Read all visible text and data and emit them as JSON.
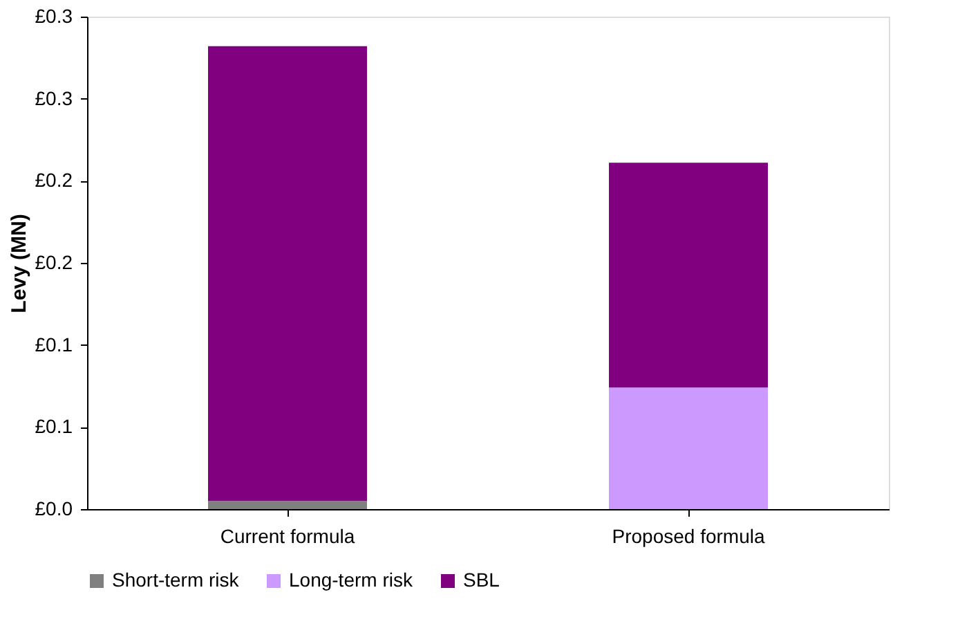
{
  "chart_data": {
    "type": "bar",
    "stacked": true,
    "ylabel": "Levy (MN)",
    "categories": [
      "Current formula",
      "Proposed formula"
    ],
    "series": [
      {
        "name": "Short-term risk",
        "color": "#808080",
        "values": [
          0.005,
          0
        ]
      },
      {
        "name": "Long-term risk",
        "color": "#cc99ff",
        "values": [
          0,
          0.074
        ]
      },
      {
        "name": "SBL",
        "color": "#800080",
        "values": [
          0.277,
          0.137
        ]
      }
    ],
    "ylim": [
      0,
      0.3
    ],
    "yticks": [
      {
        "value": 0,
        "label": "£0.0"
      },
      {
        "value": 0.05,
        "label": "£0.1"
      },
      {
        "value": 0.1,
        "label": "£0.1"
      },
      {
        "value": 0.15,
        "label": "£0.2"
      },
      {
        "value": 0.2,
        "label": "£0.2"
      },
      {
        "value": 0.25,
        "label": "£0.3"
      },
      {
        "value": 0.3,
        "label": "£0.3"
      }
    ],
    "grid": false,
    "legend": "bottom"
  }
}
